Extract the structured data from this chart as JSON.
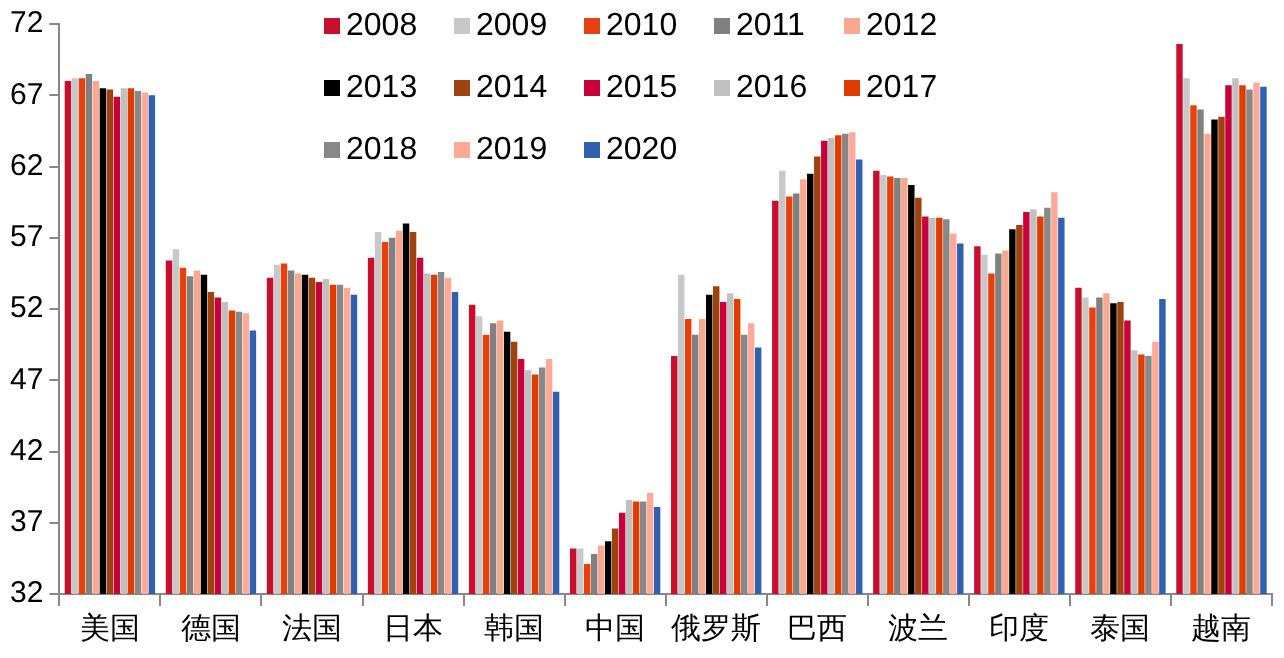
{
  "chart_data": {
    "type": "bar",
    "categories": [
      "美国",
      "德国",
      "法国",
      "日本",
      "韩国",
      "中国",
      "俄罗斯",
      "巴西",
      "波兰",
      "印度",
      "泰国",
      "越南"
    ],
    "ylim": [
      32,
      72
    ],
    "yticks": [
      32,
      37,
      42,
      47,
      52,
      57,
      62,
      67,
      72
    ],
    "grid": false,
    "legend": "top",
    "series": [
      {
        "name": "2008",
        "color": "#c8102e",
        "values": [
          68.0,
          55.4,
          54.2,
          55.6,
          52.3,
          35.2,
          48.7,
          59.6,
          61.7,
          56.4,
          53.5,
          70.6
        ]
      },
      {
        "name": "2009",
        "color": "#c8c8c8",
        "values": [
          68.2,
          56.2,
          55.1,
          57.4,
          51.5,
          35.2,
          54.4,
          61.7,
          61.4,
          55.8,
          52.8,
          68.2
        ]
      },
      {
        "name": "2010",
        "color": "#e8400c",
        "values": [
          68.2,
          54.9,
          55.2,
          56.7,
          50.2,
          34.1,
          51.3,
          59.9,
          61.3,
          54.5,
          52.1,
          66.3
        ]
      },
      {
        "name": "2011",
        "color": "#808080",
        "values": [
          68.5,
          54.3,
          54.7,
          57.0,
          51.0,
          34.8,
          50.2,
          60.1,
          61.2,
          55.9,
          52.8,
          66.0
        ]
      },
      {
        "name": "2012",
        "color": "#f8a890",
        "values": [
          68.0,
          54.7,
          54.5,
          57.5,
          51.2,
          35.4,
          51.3,
          61.1,
          61.2,
          56.1,
          53.1,
          64.3
        ]
      },
      {
        "name": "2013",
        "color": "#000000",
        "values": [
          67.5,
          54.4,
          54.4,
          58.0,
          50.4,
          35.7,
          53.0,
          61.5,
          60.7,
          57.6,
          52.4,
          65.3
        ]
      },
      {
        "name": "2014",
        "color": "#a0420e",
        "values": [
          67.4,
          53.2,
          54.2,
          57.4,
          49.7,
          36.6,
          53.6,
          62.7,
          59.8,
          57.9,
          52.5,
          65.5
        ]
      },
      {
        "name": "2015",
        "color": "#c8003c",
        "values": [
          66.9,
          52.8,
          53.9,
          55.6,
          48.5,
          37.7,
          52.5,
          63.8,
          58.5,
          58.8,
          51.2,
          67.7
        ]
      },
      {
        "name": "2016",
        "color": "#c0c0c0",
        "values": [
          67.5,
          52.5,
          54.1,
          54.5,
          47.7,
          38.6,
          53.1,
          64.0,
          58.4,
          59.0,
          49.1,
          68.2
        ]
      },
      {
        "name": "2017",
        "color": "#e03c00",
        "values": [
          67.5,
          51.9,
          53.7,
          54.4,
          47.4,
          38.5,
          52.7,
          64.2,
          58.4,
          58.5,
          48.8,
          67.7
        ]
      },
      {
        "name": "2018",
        "color": "#888888",
        "values": [
          67.3,
          51.8,
          53.7,
          54.6,
          47.9,
          38.5,
          50.2,
          64.3,
          58.3,
          59.1,
          48.7,
          67.4
        ]
      },
      {
        "name": "2019",
        "color": "#ffaa98",
        "values": [
          67.2,
          51.7,
          53.5,
          54.2,
          48.5,
          39.1,
          51.0,
          64.4,
          57.3,
          60.2,
          49.7,
          67.9
        ]
      },
      {
        "name": "2020",
        "color": "#3060b0",
        "values": [
          67.0,
          50.5,
          53.0,
          53.2,
          46.2,
          38.1,
          49.3,
          62.5,
          56.6,
          58.4,
          52.7,
          67.6
        ]
      }
    ]
  }
}
